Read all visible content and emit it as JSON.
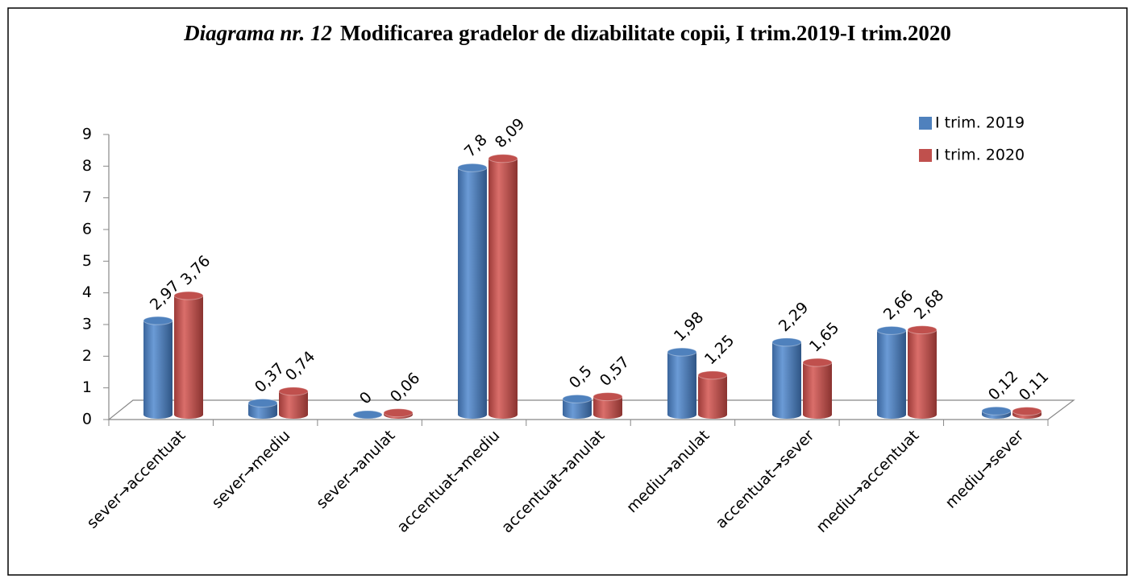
{
  "chart_data": {
    "type": "bar3d",
    "title_label": "Diagrama nr. 12",
    "title": "Modificarea gradelor de dizabilitate copii, I trim.2019-I trim.2020",
    "categories": [
      "sever→accentuat",
      "sever→mediu",
      "sever→anulat",
      "accentuat→mediu",
      "accentuat→anulat",
      "mediu→anulat",
      "accentuat→sever",
      "mediu→accentuat",
      "mediu→sever"
    ],
    "series": [
      {
        "name": "I trim. 2019",
        "color": "#4f81bd",
        "values": [
          2.97,
          0.37,
          0,
          7.8,
          0.5,
          1.98,
          2.29,
          2.66,
          0.12
        ],
        "value_labels": [
          "2,97",
          "0,37",
          "0",
          "7,8",
          "0,5",
          "1,98",
          "2,29",
          "2,66",
          "0,12"
        ]
      },
      {
        "name": "I trim. 2020",
        "color": "#c0504d",
        "values": [
          3.76,
          0.74,
          0.06,
          8.09,
          0.57,
          1.25,
          1.65,
          2.68,
          0.11
        ],
        "value_labels": [
          "3,76",
          "0,74",
          "0,06",
          "8,09",
          "0,57",
          "1,25",
          "1,65",
          "2,68",
          "0,11"
        ]
      }
    ],
    "ylim": [
      0,
      9
    ],
    "yticks": [
      0,
      1,
      2,
      3,
      4,
      5,
      6,
      7,
      8,
      9
    ],
    "grid": false,
    "legend": "top-right"
  }
}
